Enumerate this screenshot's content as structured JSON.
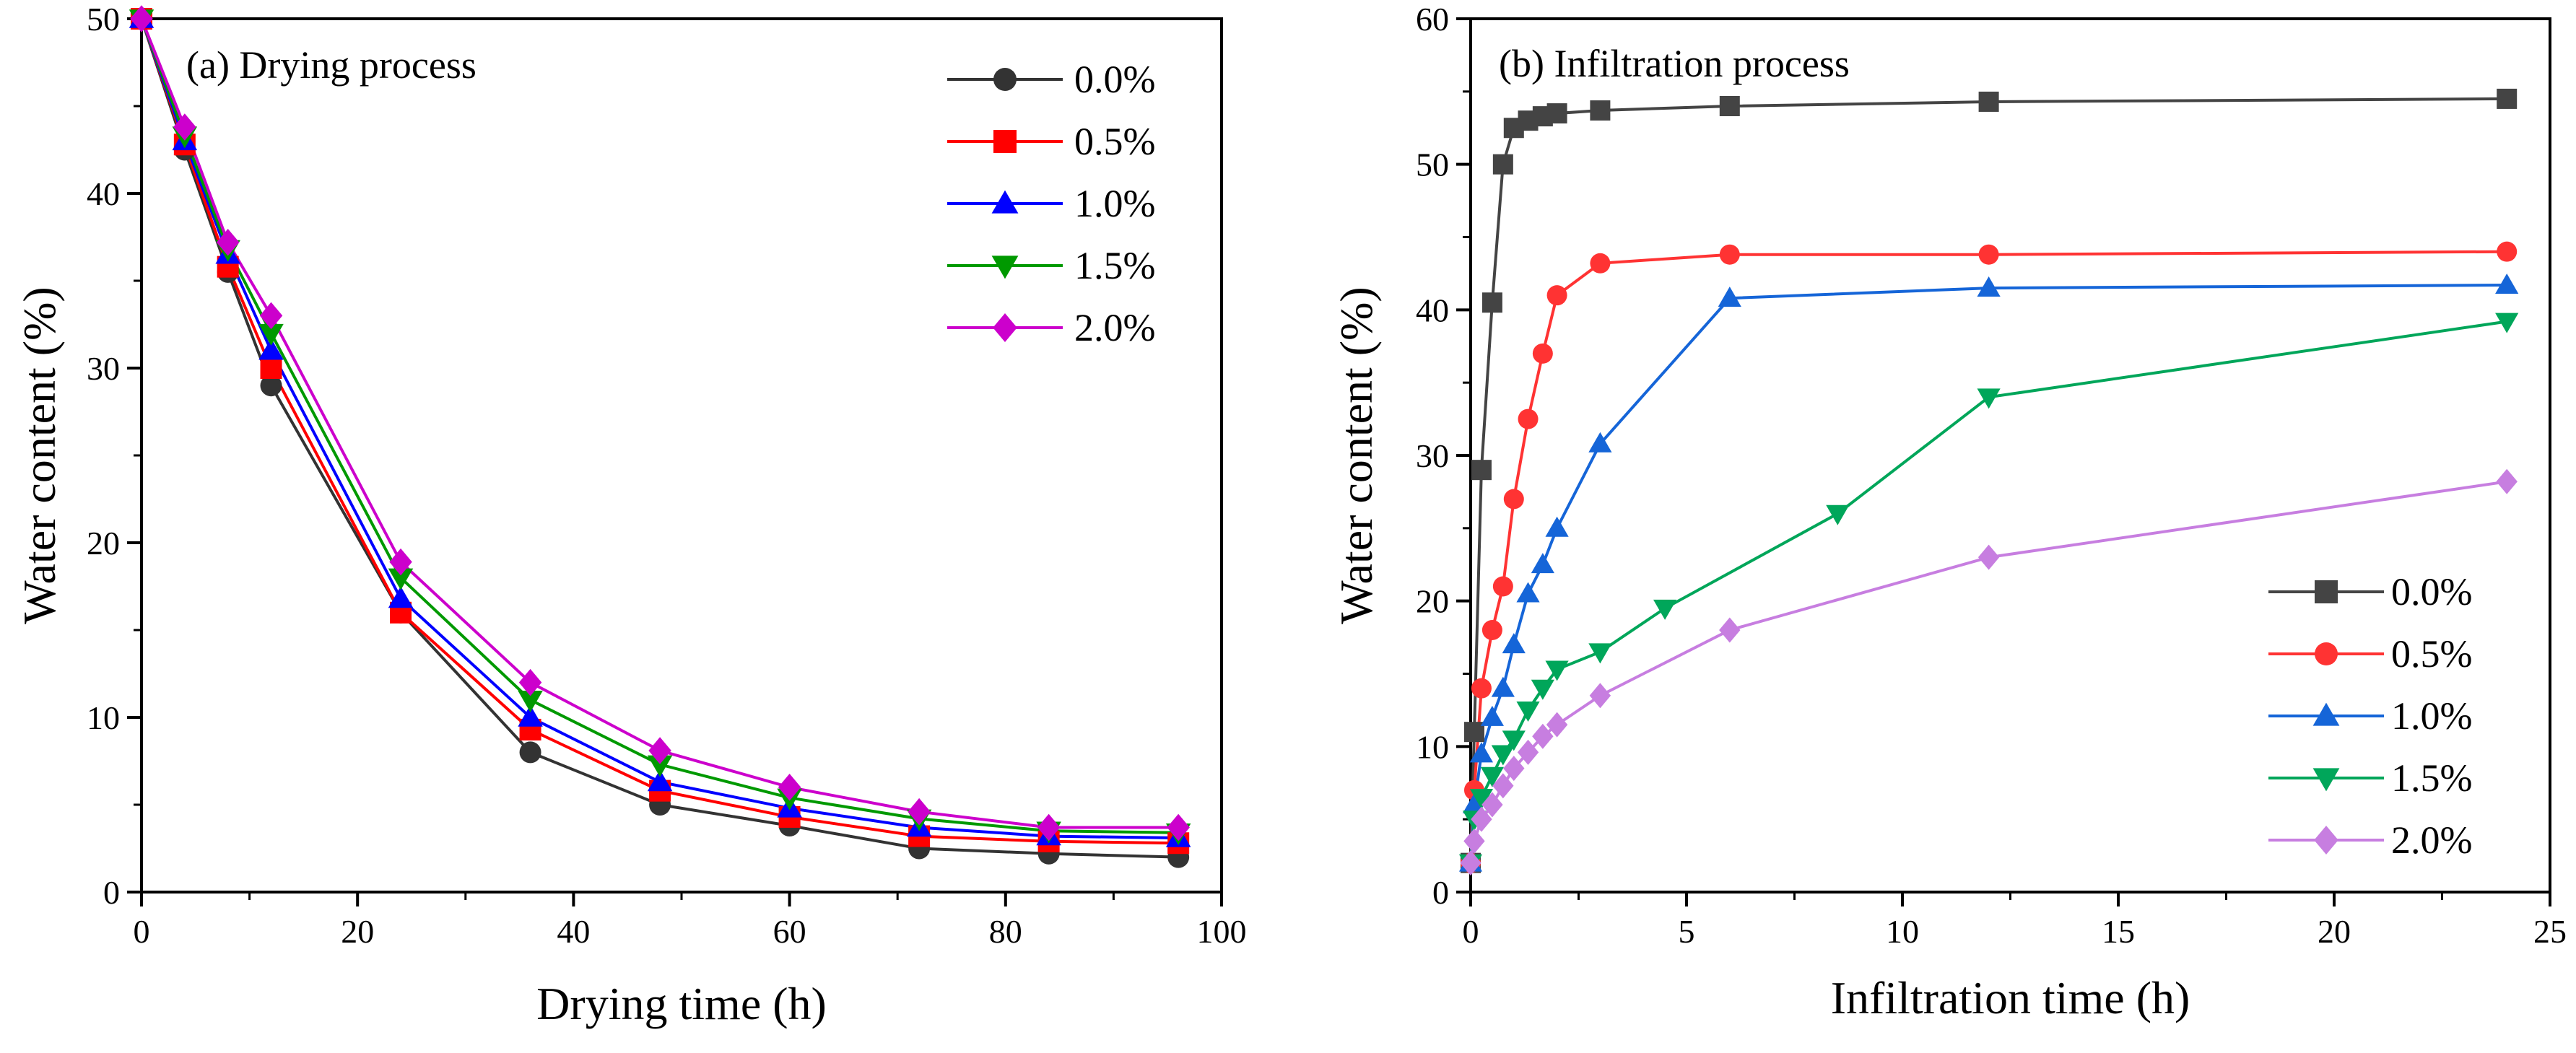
{
  "chart_data": [
    {
      "type": "line",
      "title": "(a) Drying process",
      "xlabel": "Drying time (h)",
      "ylabel": "Water content (%)",
      "xlim": [
        0,
        100
      ],
      "ylim": [
        0,
        50
      ],
      "xticks": [
        0,
        20,
        40,
        60,
        80,
        100
      ],
      "yticks": [
        0,
        10,
        20,
        30,
        40,
        50
      ],
      "xtick_labels": [
        "0",
        "20",
        "40",
        "60",
        "80",
        "100"
      ],
      "ytick_labels": [
        "0",
        "10",
        "20",
        "30",
        "40",
        "50"
      ],
      "legend_position": "top-right",
      "x": [
        0,
        4,
        8,
        12,
        24,
        36,
        48,
        60,
        72,
        84,
        96
      ],
      "series": [
        {
          "name": "0.0%",
          "color": "#333333",
          "marker": "circle",
          "values": [
            50,
            42.5,
            35.5,
            29,
            16,
            8,
            5,
            3.8,
            2.5,
            2.2,
            2
          ]
        },
        {
          "name": "0.5%",
          "color": "#ff0000",
          "marker": "square",
          "values": [
            50,
            42.8,
            35.8,
            30,
            16,
            9.3,
            5.8,
            4.3,
            3.2,
            2.9,
            2.8
          ]
        },
        {
          "name": "1.0%",
          "color": "#0000ff",
          "marker": "triangle-up",
          "values": [
            50,
            43,
            36.5,
            31,
            16.8,
            10,
            6.3,
            4.8,
            3.7,
            3.2,
            3.1
          ]
        },
        {
          "name": "1.5%",
          "color": "#009900",
          "marker": "triangle-down",
          "values": [
            50,
            43.3,
            36.8,
            32,
            18,
            11,
            7.3,
            5.4,
            4.2,
            3.5,
            3.4
          ]
        },
        {
          "name": "2.0%",
          "color": "#cc00cc",
          "marker": "diamond",
          "values": [
            50,
            43.8,
            37.2,
            33,
            18.9,
            12,
            8.1,
            6,
            4.6,
            3.7,
            3.7
          ]
        }
      ]
    },
    {
      "type": "line",
      "title": "(b)  Infiltration process",
      "xlabel": "Infiltration time (h)",
      "ylabel": "Water content (%)",
      "xlim": [
        0,
        25
      ],
      "ylim": [
        0,
        60
      ],
      "xticks": [
        0,
        5,
        10,
        15,
        20,
        25
      ],
      "yticks": [
        0,
        10,
        20,
        30,
        40,
        50,
        60
      ],
      "xtick_labels": [
        "0",
        "5",
        "10",
        "15",
        "20",
        "25"
      ],
      "ytick_labels": [
        "0",
        "10",
        "20",
        "30",
        "40",
        "50",
        "60"
      ],
      "legend_position": "bottom-right",
      "series": [
        {
          "name": "0.0%",
          "color": "#444444",
          "marker": "square",
          "x": [
            0,
            0.083,
            0.25,
            0.5,
            0.75,
            1,
            1.33,
            1.67,
            2,
            3,
            6,
            12,
            24
          ],
          "values": [
            2,
            11,
            29,
            40.5,
            50,
            52.5,
            53,
            53.3,
            53.5,
            53.7,
            54,
            54.3,
            54.5
          ]
        },
        {
          "name": "0.5%",
          "color": "#ff3333",
          "marker": "circle",
          "x": [
            0,
            0.083,
            0.25,
            0.5,
            0.75,
            1,
            1.33,
            1.67,
            2,
            3,
            6,
            12,
            24
          ],
          "values": [
            2,
            7,
            14,
            18,
            21,
            27,
            32.5,
            37,
            41,
            43.2,
            43.8,
            43.8,
            44
          ]
        },
        {
          "name": "1.0%",
          "color": "#1565d8",
          "marker": "triangle-up",
          "x": [
            0,
            0.083,
            0.25,
            0.5,
            0.75,
            1,
            1.33,
            1.67,
            2,
            3,
            6,
            12,
            24
          ],
          "values": [
            2,
            6,
            9.5,
            12,
            14,
            17,
            20.5,
            22.5,
            25,
            30.8,
            40.8,
            41.5,
            41.7
          ]
        },
        {
          "name": "1.5%",
          "color": "#00a65a",
          "marker": "triangle-down",
          "x": [
            0,
            0.083,
            0.25,
            0.5,
            0.75,
            1,
            1.33,
            1.67,
            2,
            3,
            4.5,
            8.5,
            12,
            24
          ],
          "values": [
            2,
            5,
            6.5,
            8,
            9.5,
            10.5,
            12.5,
            14,
            15.3,
            16.5,
            19.5,
            26,
            34,
            39.2
          ]
        },
        {
          "name": "2.0%",
          "color": "#c77ee0",
          "marker": "diamond",
          "x": [
            0,
            0.083,
            0.25,
            0.5,
            0.75,
            1,
            1.33,
            1.67,
            2,
            3,
            6,
            12,
            24
          ],
          "values": [
            2,
            3.5,
            5,
            6,
            7.3,
            8.5,
            9.6,
            10.7,
            11.5,
            13.5,
            18,
            23,
            28.2
          ]
        }
      ]
    }
  ]
}
